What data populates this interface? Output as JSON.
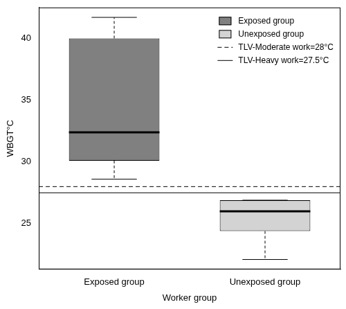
{
  "chart_data": {
    "type": "boxplot",
    "x_label": "Worker group",
    "y_label": "WBGT°C",
    "categories": [
      "Exposed group",
      "Unexposed group"
    ],
    "series": [
      {
        "name": "Exposed group",
        "color": "#808080",
        "min": 28.6,
        "q1": 30.1,
        "median": 32.4,
        "q3": 40.0,
        "max": 41.7
      },
      {
        "name": "Unexposed group",
        "color": "#d3d3d3",
        "min": 22.1,
        "q1": 24.4,
        "median": 26.0,
        "q3": 26.9,
        "max": 26.9
      }
    ],
    "reference_lines": [
      {
        "name": "TLV-Moderate work=28°C",
        "value": 28,
        "line_style": "dashed"
      },
      {
        "name": "TLV-Heavy work=27.5°C",
        "value": 27.5,
        "line_style": "solid"
      }
    ],
    "ylim": [
      21.3,
      42.5
    ],
    "yticks": [
      25,
      30,
      35,
      40
    ],
    "grid": false,
    "legend": "top right"
  }
}
